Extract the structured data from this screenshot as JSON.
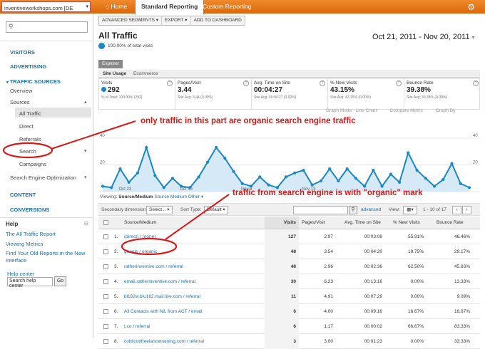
{
  "topbar": {
    "account": "inventiveworkshops.com [DE",
    "nav": [
      "Home",
      "Standard Reporting",
      "Custom Reporting"
    ],
    "accent": "#e8791c"
  },
  "sidebar": {
    "sections": [
      "VISITORS",
      "ADVERTISING",
      "TRAFFIC SOURCES",
      "Overview",
      "Sources",
      "All Traffic",
      "Direct",
      "Referrals",
      "Search",
      "Campaigns",
      "Search Engine Optimization",
      "CONTENT",
      "CONVERSIONS"
    ],
    "help": {
      "title": "Help",
      "links": [
        "The All Traffic Report",
        "Viewing Metrics",
        "Find Your Old Reports in the New Interface"
      ],
      "center": "Help center",
      "input_value": "Search help center",
      "go": "Go"
    }
  },
  "toolbar": [
    "ADVANCED SEGMENTS ▾",
    "EXPORT ▾",
    "ADD TO DASHBOARD"
  ],
  "page": {
    "title": "All Traffic",
    "subtitle": "100.00% of total visits",
    "date_range": "Oct 21, 2011 - Nov 20, 2011",
    "explorer_tab": "Explorer",
    "subtabs": [
      "Site Usage",
      "Ecommerce"
    ]
  },
  "metrics": [
    {
      "label": "Visits",
      "value": "292",
      "avg": "% of Total: 100.00% (292)"
    },
    {
      "label": "Pages/Visit",
      "value": "3.44",
      "avg": "Site Avg: 3.44 (0.00%)"
    },
    {
      "label": "Avg. Time on Site",
      "value": "00:04:27",
      "avg": "Site Avg: 00:04:27 (0.00%)"
    },
    {
      "label": "% New Visits",
      "value": "43.15%",
      "avg": "Site Avg: 43.15% (0.00%)"
    },
    {
      "label": "Bounce Rate",
      "value": "39.38%",
      "avg": "Site Avg: 39.38% (0.00%)"
    }
  ],
  "chart_controls": {
    "graph_mode": "Graph Mode",
    "line_chart": "Line Chart",
    "compare": "Compare Metric",
    "graph_by": "Graph By"
  },
  "chart_data": {
    "type": "area",
    "y_ticks": [
      "40",
      "20"
    ],
    "x_ticks": [
      "Oct 23",
      "Oct 30",
      "Nov 6",
      "Nov 13"
    ],
    "ylim": [
      0,
      40
    ],
    "values": [
      4,
      3,
      17,
      7,
      14,
      33,
      12,
      3,
      10,
      4,
      3,
      11,
      22,
      33,
      25,
      15,
      6,
      4,
      11,
      5,
      3,
      11,
      14,
      16,
      5,
      8,
      17,
      8,
      17,
      10,
      4,
      16,
      4,
      13,
      7,
      29,
      16,
      10,
      4,
      9,
      21,
      6,
      3
    ]
  },
  "viewing": {
    "label": "Viewing:",
    "active": "Source/Medium",
    "others": [
      "Source",
      "Medium",
      "Other ▾"
    ]
  },
  "secondary": {
    "label": "Secondary dimension:",
    "select": "Select... ▾",
    "sort_label": "Sort Type:",
    "sort": "Default ▾",
    "advanced": "advanced",
    "view": "View:",
    "range": "1 - 10 of 17"
  },
  "table": {
    "headers": [
      "Source/Medium",
      "Visits",
      "Pages/Visit",
      "Avg. Time on Site",
      "% New Visits",
      "Bounce Rate"
    ],
    "rows": [
      [
        "1.",
        "(direct) / (none)",
        "127",
        "2.97",
        "00:03:08",
        "55.91%",
        "46.46%"
      ],
      [
        "2.",
        "google / organic",
        "48",
        "3.54",
        "00:04:29",
        "18.75%",
        "29.17%"
      ],
      [
        "3.",
        "ratherinventive.com / referral",
        "48",
        "2.96",
        "00:02:36",
        "62.50%",
        "45.83%"
      ],
      [
        "4.",
        "email.ratherinventive.com / referral",
        "30",
        "6.23",
        "00:13:16",
        "0.00%",
        "13.33%"
      ],
      [
        "5.",
        "bl162w.blu162.mail.live.com / referral",
        "11",
        "4.91",
        "00:07:29",
        "0.00%",
        "9.09%"
      ],
      [
        "6.",
        "All Contacts with NiL from ACT / email",
        "6",
        "4.00",
        "00:09:16",
        "16.67%",
        "16.67%"
      ],
      [
        "7.",
        "t.co / referral",
        "6",
        "1.17",
        "00:00:02",
        "66.67%",
        "83.33%"
      ],
      [
        "8.",
        "coldicottfreelancetraining.com / referral",
        "3",
        "3.00",
        "00:01:23",
        "0.00%",
        "33.33%"
      ]
    ]
  },
  "annotations": {
    "top": "only traffic in this part are organic search engine traffic",
    "bottom": "traffic from search engine is with \"organic\" mark",
    "color": "#d81818"
  }
}
